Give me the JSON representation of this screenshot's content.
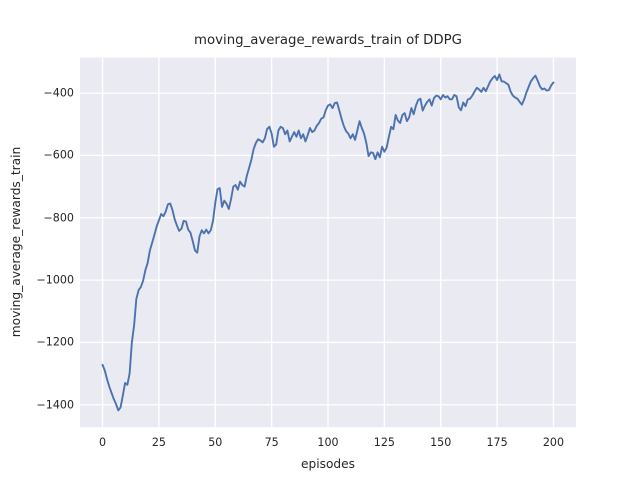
{
  "chart_data": {
    "type": "line",
    "title": "moving_average_rewards_train of DDPG",
    "xlabel": "episodes",
    "ylabel": "moving_average_rewards_train",
    "grid": true,
    "legend": false,
    "style": "seaborn-darkgrid",
    "colors": {
      "line": "#4c72b0",
      "plot_background": "#eaeaf2",
      "grid": "#ffffff",
      "text": "#262626",
      "figure_background": "#ffffff"
    },
    "xlim": [
      -10,
      210
    ],
    "ylim": [
      -1472,
      -286
    ],
    "x_ticks": {
      "values": [
        0,
        25,
        50,
        75,
        100,
        125,
        150,
        175,
        200
      ],
      "labels": [
        "0",
        "25",
        "50",
        "75",
        "100",
        "125",
        "150",
        "175",
        "200"
      ]
    },
    "y_ticks": {
      "values": [
        -400,
        -600,
        -800,
        -1000,
        -1200,
        -1400
      ],
      "labels": [
        "−400",
        "−600",
        "−800",
        "−1000",
        "−1200",
        "−1400"
      ]
    },
    "series": [
      {
        "name": "moving_average_rewards_train of DDPG",
        "x_start": 0,
        "x_step": 1,
        "values": [
          -1272,
          -1290,
          -1318,
          -1342,
          -1362,
          -1382,
          -1398,
          -1418,
          -1408,
          -1370,
          -1330,
          -1336,
          -1300,
          -1200,
          -1145,
          -1060,
          -1032,
          -1022,
          -1002,
          -968,
          -945,
          -905,
          -880,
          -855,
          -828,
          -808,
          -788,
          -795,
          -780,
          -757,
          -754,
          -775,
          -805,
          -825,
          -842,
          -835,
          -810,
          -812,
          -838,
          -848,
          -875,
          -905,
          -912,
          -860,
          -840,
          -850,
          -838,
          -850,
          -840,
          -810,
          -752,
          -708,
          -705,
          -765,
          -745,
          -755,
          -772,
          -740,
          -700,
          -695,
          -710,
          -684,
          -695,
          -700,
          -665,
          -640,
          -614,
          -580,
          -560,
          -548,
          -552,
          -558,
          -545,
          -515,
          -508,
          -530,
          -572,
          -565,
          -520,
          -508,
          -512,
          -532,
          -520,
          -555,
          -540,
          -525,
          -540,
          -520,
          -545,
          -532,
          -555,
          -535,
          -512,
          -525,
          -520,
          -505,
          -496,
          -482,
          -478,
          -455,
          -440,
          -436,
          -448,
          -432,
          -430,
          -455,
          -482,
          -505,
          -522,
          -530,
          -545,
          -532,
          -550,
          -520,
          -490,
          -512,
          -530,
          -560,
          -602,
          -590,
          -592,
          -612,
          -590,
          -606,
          -572,
          -588,
          -575,
          -540,
          -508,
          -516,
          -470,
          -488,
          -496,
          -470,
          -464,
          -490,
          -478,
          -448,
          -468,
          -440,
          -422,
          -418,
          -456,
          -440,
          -428,
          -420,
          -440,
          -416,
          -408,
          -410,
          -420,
          -406,
          -414,
          -410,
          -420,
          -420,
          -406,
          -410,
          -445,
          -455,
          -430,
          -442,
          -420,
          -418,
          -408,
          -395,
          -383,
          -388,
          -396,
          -383,
          -394,
          -378,
          -362,
          -352,
          -345,
          -358,
          -340,
          -362,
          -363,
          -368,
          -373,
          -395,
          -408,
          -414,
          -418,
          -428,
          -437,
          -420,
          -398,
          -380,
          -362,
          -352,
          -344,
          -360,
          -378,
          -388,
          -385,
          -392,
          -390,
          -375,
          -366
        ]
      }
    ]
  }
}
